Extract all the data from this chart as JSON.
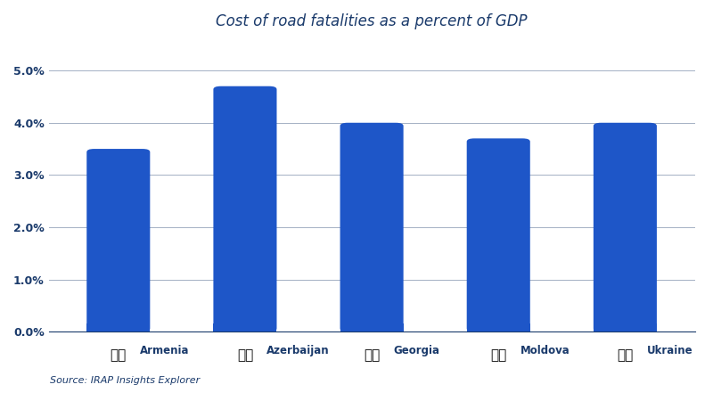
{
  "title": "Cost of road fatalities as a percent of GDP",
  "title_color": "#1a3a6b",
  "title_fontsize": 12,
  "categories": [
    "Armenia",
    "Azerbaijan",
    "Georgia",
    "Moldova",
    "Ukraine"
  ],
  "values": [
    3.5,
    4.7,
    4.0,
    3.7,
    4.0
  ],
  "bar_color": "#1e56c8",
  "ylim": [
    0,
    5.5
  ],
  "yticks": [
    0.0,
    1.0,
    2.0,
    3.0,
    4.0,
    5.0
  ],
  "ytick_labels": [
    "0.0%",
    "1.0%",
    "2.0%",
    "3.0%",
    "4.0%",
    "5.0%"
  ],
  "grid_color": "#1a3a6b",
  "grid_alpha": 0.4,
  "background_color": "#ffffff",
  "axes_background_color": "#ffffff",
  "text_color": "#1a3a6b",
  "source_text": "Source: IRAP Insights Explorer",
  "source_fontsize": 8,
  "bar_width": 0.5,
  "flag_emoji": [
    "🇦🇲",
    "🇦🇿",
    "🇬🇪",
    "🇲🇩",
    "🇺🇦"
  ],
  "flag_colors_outer": [
    "#d90012",
    "#008751",
    "#ffffff",
    "#003DA5",
    "#005BBB"
  ],
  "flag_colors_inner": [
    "#f2a800",
    "#ef3340",
    "#d90012",
    "#CC0001",
    "#FFD500"
  ],
  "xlim_left": -0.55,
  "xlim_right": 4.55
}
